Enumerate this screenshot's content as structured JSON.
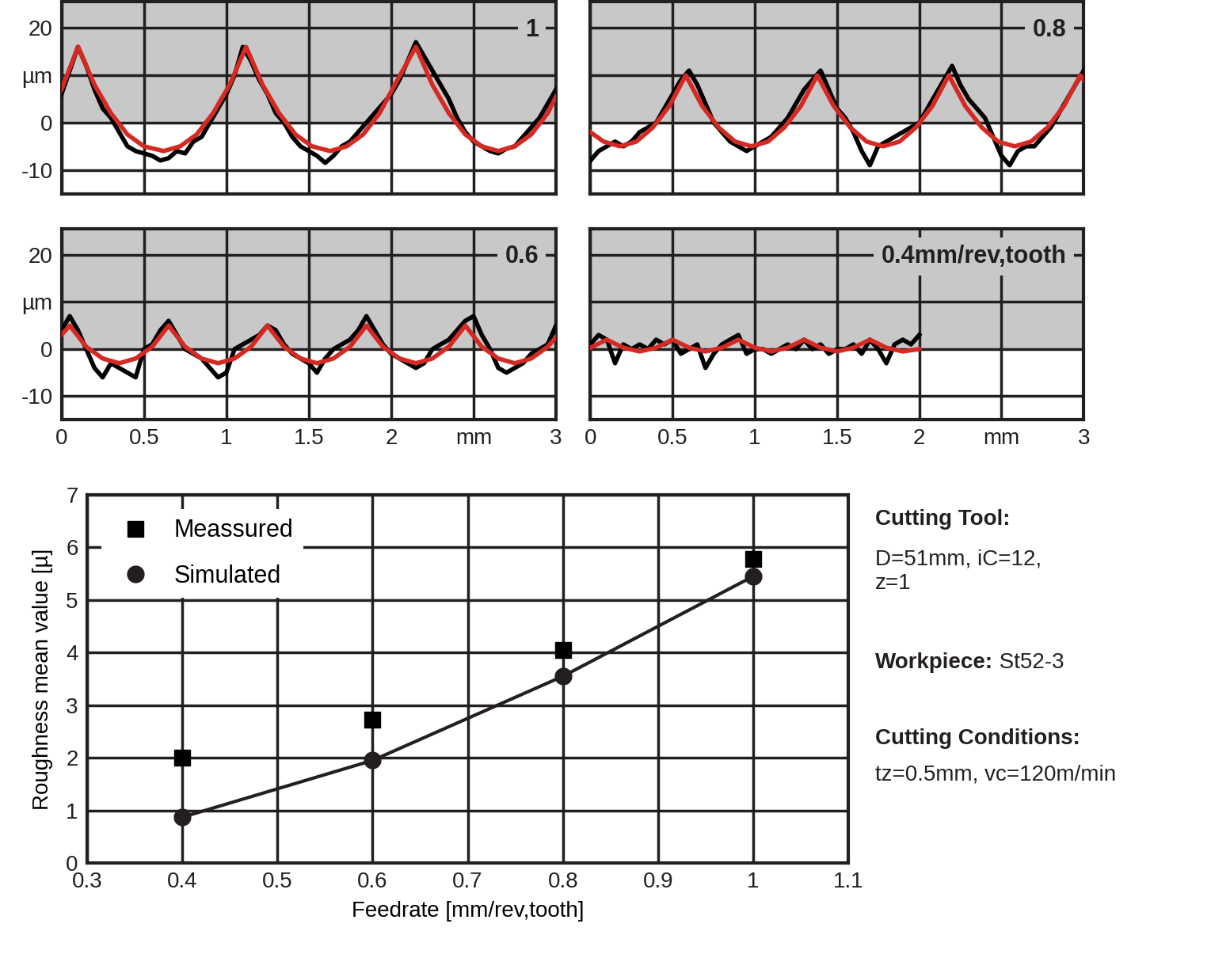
{
  "chart_data": [
    {
      "type": "line",
      "title": "1",
      "xlim": [
        0,
        3
      ],
      "ylim": [
        -15,
        25.5
      ],
      "xticks": [
        0,
        0.5,
        1,
        1.5,
        2,
        {
          "value": 2.5,
          "label": "mm"
        },
        3
      ],
      "yticks": [
        -10,
        0,
        {
          "value": 10,
          "label": "µm"
        },
        20
      ],
      "grid": true,
      "tick_labels": "y",
      "series": [
        {
          "color": "#000000",
          "x": [
            0,
            0.05,
            0.1,
            0.15,
            0.2,
            0.25,
            0.3,
            0.35,
            0.4,
            0.45,
            0.5,
            0.55,
            0.6,
            0.65,
            0.7,
            0.75,
            0.8,
            0.85,
            0.9,
            0.95,
            1,
            1.05,
            1.1,
            1.15,
            1.2,
            1.25,
            1.3,
            1.35,
            1.4,
            1.45,
            1.5,
            1.55,
            1.6,
            1.65,
            1.7,
            1.75,
            1.8,
            1.85,
            1.9,
            1.95,
            2,
            2.05,
            2.1,
            2.15,
            2.2,
            2.25,
            2.3,
            2.35,
            2.4,
            2.45,
            2.5,
            2.55,
            2.6,
            2.65,
            2.7,
            2.75,
            2.8,
            2.85,
            2.9,
            2.95,
            3
          ],
          "values": [
            6,
            11,
            16,
            12,
            7,
            3,
            1,
            -2,
            -5,
            -6,
            -6.5,
            -7,
            -8,
            -7.5,
            -6,
            -6.5,
            -4,
            -3,
            0,
            3,
            6,
            10,
            16,
            13,
            9,
            6,
            2,
            0,
            -3,
            -5,
            -6,
            -7,
            -8.5,
            -7,
            -5,
            -4,
            -2,
            0,
            2,
            4,
            6,
            9,
            13,
            17,
            14,
            11,
            8,
            5,
            1,
            -2,
            -4,
            -5,
            -6,
            -6.5,
            -5.5,
            -5,
            -3,
            -1,
            1,
            4,
            7
          ]
        },
        {
          "color": "#d42a23",
          "x": [
            0,
            0.1,
            0.2,
            0.3,
            0.4,
            0.5,
            0.62,
            0.72,
            0.82,
            0.92,
            1.02,
            1.12,
            1.22,
            1.32,
            1.42,
            1.52,
            1.63,
            1.73,
            1.83,
            1.93,
            2.03,
            2.15,
            2.25,
            2.35,
            2.45,
            2.55,
            2.65,
            2.75,
            2.85,
            2.95,
            3
          ],
          "values": [
            7,
            16,
            8,
            2,
            -2.5,
            -5,
            -6,
            -5,
            -2.5,
            2,
            8,
            16,
            8,
            2,
            -2.5,
            -5,
            -6,
            -5,
            -2.5,
            2,
            8.5,
            16,
            8,
            2,
            -2.5,
            -5,
            -6,
            -5,
            -2.5,
            2,
            5.5
          ]
        }
      ]
    },
    {
      "type": "line",
      "title": "0.8",
      "xlim": [
        0,
        3
      ],
      "ylim": [
        -15,
        25.5
      ],
      "xticks": [
        0,
        0.5,
        1,
        1.5,
        2,
        {
          "value": 2.5,
          "label": "mm"
        },
        3
      ],
      "yticks": [
        -10,
        0,
        {
          "value": 10,
          "label": "µm"
        },
        20
      ],
      "grid": true,
      "tick_labels": false,
      "series": [
        {
          "color": "#000000",
          "x": [
            0,
            0.05,
            0.1,
            0.15,
            0.2,
            0.25,
            0.3,
            0.35,
            0.4,
            0.45,
            0.5,
            0.55,
            0.6,
            0.65,
            0.7,
            0.75,
            0.8,
            0.85,
            0.9,
            0.95,
            1,
            1.05,
            1.1,
            1.15,
            1.2,
            1.25,
            1.3,
            1.35,
            1.4,
            1.45,
            1.5,
            1.55,
            1.6,
            1.65,
            1.7,
            1.75,
            1.8,
            1.85,
            1.9,
            1.95,
            2,
            2.05,
            2.1,
            2.15,
            2.2,
            2.25,
            2.3,
            2.35,
            2.4,
            2.45,
            2.5,
            2.55,
            2.6,
            2.65,
            2.7,
            2.75,
            2.8,
            2.85,
            2.9,
            2.95,
            3
          ],
          "values": [
            -8,
            -6,
            -5,
            -4,
            -5,
            -4,
            -2,
            -1,
            0,
            3,
            6,
            9,
            11,
            8,
            4,
            0,
            -2,
            -4,
            -5,
            -6,
            -5,
            -4,
            -3,
            -1,
            1,
            4,
            7,
            9,
            11,
            7,
            3,
            1,
            -2,
            -6,
            -9,
            -5,
            -4,
            -3,
            -2,
            -1,
            0,
            3,
            6,
            9,
            12,
            8,
            5,
            3,
            1,
            -3,
            -7,
            -9,
            -6,
            -5,
            -5,
            -3,
            -1,
            2,
            5,
            8,
            11
          ]
        },
        {
          "color": "#d42a23",
          "x": [
            0,
            0.08,
            0.18,
            0.28,
            0.38,
            0.48,
            0.58,
            0.68,
            0.78,
            0.88,
            0.98,
            1.08,
            1.18,
            1.28,
            1.38,
            1.48,
            1.58,
            1.68,
            1.78,
            1.88,
            1.98,
            2.08,
            2.18,
            2.28,
            2.38,
            2.48,
            2.58,
            2.68,
            2.78,
            2.88,
            2.98,
            3
          ],
          "values": [
            -2,
            -4,
            -5,
            -4,
            -1,
            3.5,
            10,
            3.5,
            -1,
            -4,
            -5,
            -4,
            -1,
            3.5,
            10,
            3.5,
            -1,
            -4,
            -5,
            -4,
            -1,
            3.5,
            10,
            3.5,
            -1,
            -4,
            -5,
            -4,
            -1,
            3.5,
            10,
            9
          ]
        }
      ]
    },
    {
      "type": "line",
      "title": "0.6",
      "xlim": [
        0,
        3
      ],
      "ylim": [
        -15,
        25.5
      ],
      "xticks": [
        0,
        0.5,
        1,
        1.5,
        2,
        {
          "value": 2.5,
          "label": "mm"
        },
        3
      ],
      "yticks": [
        -10,
        0,
        {
          "value": 10,
          "label": "µm"
        },
        20
      ],
      "grid": true,
      "tick_labels": true,
      "series": [
        {
          "color": "#000000",
          "x": [
            0,
            0.05,
            0.1,
            0.15,
            0.2,
            0.25,
            0.3,
            0.35,
            0.4,
            0.45,
            0.5,
            0.55,
            0.6,
            0.65,
            0.7,
            0.75,
            0.8,
            0.85,
            0.9,
            0.95,
            1,
            1.05,
            1.1,
            1.15,
            1.2,
            1.25,
            1.3,
            1.35,
            1.4,
            1.45,
            1.5,
            1.55,
            1.6,
            1.65,
            1.7,
            1.75,
            1.8,
            1.85,
            1.9,
            1.95,
            2,
            2.05,
            2.1,
            2.15,
            2.2,
            2.25,
            2.3,
            2.35,
            2.4,
            2.45,
            2.5,
            2.55,
            2.6,
            2.65,
            2.7,
            2.75,
            2.8,
            2.85,
            2.9,
            2.95,
            3
          ],
          "values": [
            4,
            7,
            4,
            0,
            -4,
            -6,
            -3,
            -4,
            -5,
            -6,
            0,
            1,
            4,
            6,
            3,
            0,
            -1,
            -2,
            -4,
            -6,
            -5,
            0,
            1,
            2,
            3,
            5,
            4,
            1,
            -1,
            -2,
            -3,
            -5,
            -2,
            0,
            1,
            2,
            4,
            7,
            4,
            1,
            -1,
            -2,
            -3,
            -4,
            -3,
            0,
            1,
            2,
            4,
            6,
            7,
            3,
            0,
            -4,
            -5,
            -4,
            -3,
            -1,
            0,
            1,
            5
          ]
        },
        {
          "color": "#d42a23",
          "x": [
            0,
            0.05,
            0.15,
            0.25,
            0.35,
            0.45,
            0.55,
            0.65,
            0.75,
            0.85,
            0.95,
            1.05,
            1.15,
            1.25,
            1.35,
            1.45,
            1.55,
            1.65,
            1.75,
            1.85,
            1.95,
            2.05,
            2.15,
            2.25,
            2.35,
            2.45,
            2.55,
            2.65,
            2.75,
            2.85,
            2.95,
            3
          ],
          "values": [
            3,
            5,
            0.5,
            -2,
            -3,
            -2,
            0.5,
            5,
            0.5,
            -2,
            -3,
            -2,
            0.5,
            5,
            0.5,
            -2,
            -3,
            -2,
            0.5,
            5,
            0.5,
            -2,
            -3,
            -2,
            0.5,
            5,
            0.5,
            -2,
            -3,
            -2,
            0.5,
            2.5
          ]
        }
      ]
    },
    {
      "type": "line",
      "title": "0.4mm/rev,tooth",
      "xlim": [
        0,
        3
      ],
      "ylim": [
        -15,
        25.5
      ],
      "xticks": [
        0,
        0.5,
        1,
        1.5,
        2,
        {
          "value": 2.5,
          "label": "mm"
        },
        3
      ],
      "yticks": [
        -10,
        0,
        {
          "value": 10,
          "label": "µm"
        },
        20
      ],
      "grid": true,
      "tick_labels": "x",
      "series": [
        {
          "color": "#000000",
          "x": [
            0,
            0.05,
            0.1,
            0.15,
            0.2,
            0.25,
            0.3,
            0.35,
            0.4,
            0.45,
            0.5,
            0.55,
            0.6,
            0.65,
            0.7,
            0.75,
            0.8,
            0.85,
            0.9,
            0.95,
            1,
            1.05,
            1.1,
            1.15,
            1.2,
            1.25,
            1.3,
            1.35,
            1.4,
            1.45,
            1.5,
            1.55,
            1.6,
            1.65,
            1.7,
            1.75,
            1.8,
            1.85,
            1.9,
            1.95,
            2
          ],
          "values": [
            1,
            3,
            2,
            -3,
            1,
            0,
            1,
            0,
            2,
            1,
            2,
            -1,
            0,
            1,
            -4,
            -1,
            1,
            2,
            3,
            -1,
            0,
            0,
            -1,
            0,
            1,
            0,
            2,
            0,
            1,
            -1,
            0,
            0,
            1,
            -1,
            2,
            0,
            -3,
            1,
            2,
            1,
            3
          ]
        },
        {
          "color": "#d42a23",
          "x": [
            0,
            0.1,
            0.2,
            0.3,
            0.4,
            0.5,
            0.6,
            0.7,
            0.8,
            0.9,
            1,
            1.1,
            1.2,
            1.3,
            1.4,
            1.5,
            1.6,
            1.7,
            1.8,
            1.9,
            2
          ],
          "values": [
            0.3,
            2,
            0.3,
            -0.5,
            0.3,
            2,
            0.3,
            -0.5,
            0.3,
            2,
            0.3,
            -0.5,
            0.3,
            2,
            0.3,
            -0.5,
            0.3,
            2,
            0.3,
            -0.5,
            0
          ]
        }
      ]
    },
    {
      "type": "line",
      "xlabel": "Feedrate [mm/rev,tooth]",
      "ylabel": "Roughness mean value [µ]",
      "x": [
        0.4,
        0.6,
        0.8,
        1.0
      ],
      "xlim": [
        0.3,
        1.1
      ],
      "xticks": [
        0.3,
        0.4,
        0.5,
        0.6,
        0.7,
        0.8,
        0.9,
        1,
        1.1
      ],
      "ylim": [
        0,
        7
      ],
      "yticks": [
        0,
        1,
        2,
        3,
        4,
        5,
        6,
        7
      ],
      "grid": true,
      "legend": "upper left",
      "series": [
        {
          "name": "Meassured",
          "type": "scatter",
          "marker": "square",
          "color": "#000000",
          "values": [
            2.0,
            2.72,
            4.05,
            5.78
          ]
        },
        {
          "name": "Simulated",
          "type": "line",
          "marker": "circle",
          "line_style": "solid",
          "color": "#231f20",
          "values": [
            0.87,
            1.95,
            3.55,
            5.45
          ]
        }
      ],
      "annotations": [
        "Cutting Tool:",
        "D=51mm, iC=12,\nz=1",
        "Workpiece:",
        "St52-3",
        "Cutting Conditions:",
        "tz=0.5mm, vc=120m/min"
      ]
    }
  ]
}
